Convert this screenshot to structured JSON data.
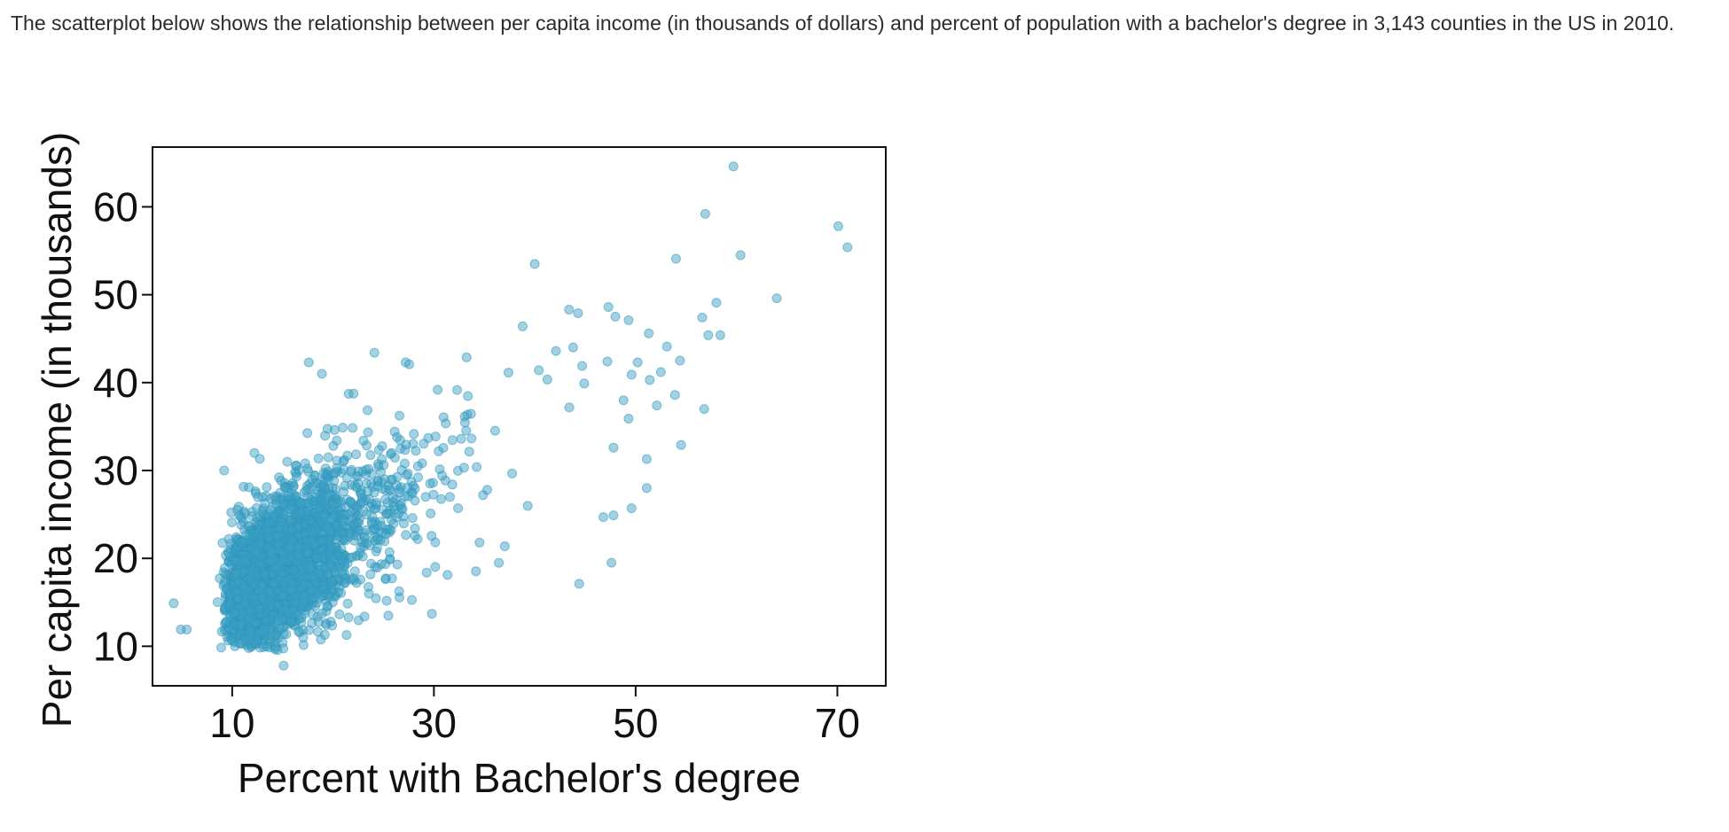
{
  "intro_text": "The scatterplot below shows the relationship between per capita income (in thousands of dollars) and percent of population with a bachelor's degree in 3,143 counties in the US in 2010.",
  "chart_data": {
    "type": "scatter",
    "xlabel": "Percent with Bachelor's degree",
    "ylabel": "Per capita income (in thousands)",
    "xlim": [
      2.1,
      74.8
    ],
    "ylim": [
      5.5,
      66.8
    ],
    "xticks": [
      10,
      30,
      50,
      70
    ],
    "yticks": [
      10,
      20,
      30,
      40,
      50,
      60
    ],
    "grid": false,
    "point_color": "#3aa0c4",
    "n_points": 3143,
    "outlier_points": [
      {
        "x": 59.7,
        "y": 64.6
      },
      {
        "x": 56.9,
        "y": 59.2
      },
      {
        "x": 70.1,
        "y": 57.8
      },
      {
        "x": 71.0,
        "y": 55.4
      },
      {
        "x": 60.4,
        "y": 54.5
      },
      {
        "x": 54.0,
        "y": 54.1
      },
      {
        "x": 40.0,
        "y": 53.5
      },
      {
        "x": 64.0,
        "y": 49.6
      },
      {
        "x": 58.0,
        "y": 49.1
      },
      {
        "x": 47.3,
        "y": 48.6
      },
      {
        "x": 43.4,
        "y": 48.3
      },
      {
        "x": 44.3,
        "y": 47.9
      },
      {
        "x": 48.0,
        "y": 47.5
      },
      {
        "x": 49.3,
        "y": 47.1
      },
      {
        "x": 56.6,
        "y": 47.4
      },
      {
        "x": 38.8,
        "y": 46.4
      },
      {
        "x": 51.3,
        "y": 45.6
      },
      {
        "x": 57.2,
        "y": 45.4
      },
      {
        "x": 58.4,
        "y": 45.4
      },
      {
        "x": 53.1,
        "y": 44.1
      },
      {
        "x": 42.1,
        "y": 43.6
      },
      {
        "x": 24.1,
        "y": 43.4
      },
      {
        "x": 43.8,
        "y": 44.0
      },
      {
        "x": 54.4,
        "y": 42.5
      },
      {
        "x": 17.6,
        "y": 42.3
      },
      {
        "x": 27.2,
        "y": 42.3
      },
      {
        "x": 47.2,
        "y": 42.4
      },
      {
        "x": 50.2,
        "y": 42.3
      },
      {
        "x": 44.7,
        "y": 41.9
      },
      {
        "x": 18.9,
        "y": 41.0
      },
      {
        "x": 40.4,
        "y": 41.4
      },
      {
        "x": 52.5,
        "y": 41.2
      },
      {
        "x": 49.6,
        "y": 40.9
      },
      {
        "x": 51.4,
        "y": 40.3
      },
      {
        "x": 44.9,
        "y": 39.9
      },
      {
        "x": 48.8,
        "y": 38.0
      },
      {
        "x": 52.1,
        "y": 37.4
      },
      {
        "x": 53.9,
        "y": 38.6
      },
      {
        "x": 56.8,
        "y": 37.0
      },
      {
        "x": 54.5,
        "y": 32.9
      },
      {
        "x": 49.3,
        "y": 35.9
      },
      {
        "x": 47.8,
        "y": 32.6
      },
      {
        "x": 51.1,
        "y": 31.3
      },
      {
        "x": 51.1,
        "y": 28.0
      },
      {
        "x": 49.6,
        "y": 25.7
      },
      {
        "x": 47.8,
        "y": 24.9
      },
      {
        "x": 46.8,
        "y": 24.7
      },
      {
        "x": 44.4,
        "y": 17.1
      },
      {
        "x": 47.6,
        "y": 19.5
      },
      {
        "x": 29.8,
        "y": 13.7
      },
      {
        "x": 15.1,
        "y": 7.8
      },
      {
        "x": 9.2,
        "y": 30.0
      },
      {
        "x": 12.2,
        "y": 32.0
      },
      {
        "x": 4.2,
        "y": 14.9
      },
      {
        "x": 4.9,
        "y": 11.9
      },
      {
        "x": 5.5,
        "y": 11.9
      }
    ]
  }
}
